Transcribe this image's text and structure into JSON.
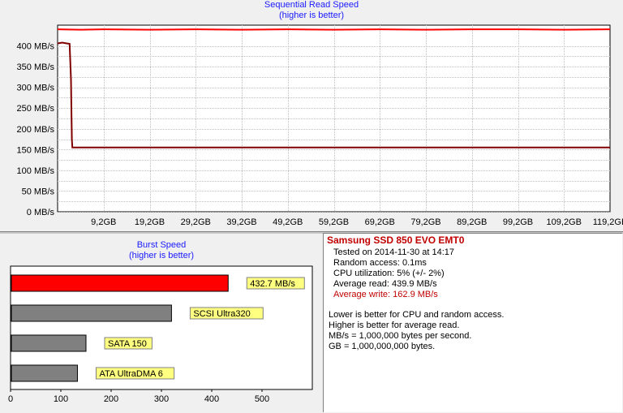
{
  "seq_chart": {
    "title": "Sequential Read Speed",
    "subtitle": "(higher is better)",
    "chart_data": {
      "type": "line",
      "title": "Sequential Read Speed",
      "subtitle": "(higher is better)",
      "y_ticks": [
        "0 MB/s",
        "25 MB/s",
        "50 MB/s",
        "75 MB/s",
        "100 MB/s",
        "125 MB/s",
        "150 MB/s",
        "175 MB/s",
        "200 MB/s",
        "225 MB/s",
        "250 MB/s",
        "275 MB/s",
        "300 MB/s",
        "325 MB/s",
        "350 MB/s",
        "375 MB/s",
        "400 MB/s"
      ],
      "y_tick_labels_shown": [
        "0 MB/s",
        "50 MB/s",
        "100 MB/s",
        "150 MB/s",
        "200 MB/s",
        "250 MB/s",
        "300 MB/s",
        "350 MB/s",
        "400 MB/s"
      ],
      "x_ticks": [
        "9,2GB",
        "19,2GB",
        "29,2GB",
        "39,2GB",
        "49,2GB",
        "59,2GB",
        "69,2GB",
        "79,2GB",
        "89,2GB",
        "99,2GB",
        "109,2GB",
        "119,2GB"
      ],
      "ylim": [
        0,
        450
      ],
      "xlim": [
        0,
        120
      ],
      "grid": true,
      "series": [
        {
          "color": "#ff0000",
          "x": [
            0,
            5,
            10,
            20,
            30,
            40,
            50,
            60,
            70,
            80,
            90,
            100,
            110,
            120
          ],
          "values": [
            440,
            439,
            440,
            439,
            440,
            439,
            440,
            439,
            440,
            439,
            440,
            440,
            439,
            440
          ]
        },
        {
          "color": "#800000",
          "x": [
            0,
            1,
            2,
            2.6,
            2.9,
            3.0,
            3.1,
            3.2,
            5,
            20,
            40,
            60,
            80,
            100,
            120
          ],
          "values": [
            406,
            408,
            406,
            405,
            320,
            250,
            175,
            155,
            155,
            155,
            155,
            155,
            155,
            155,
            155
          ]
        }
      ]
    }
  },
  "burst_chart": {
    "title": "Burst Speed",
    "subtitle": "(higher is better)",
    "chart_data": {
      "type": "bar",
      "orientation": "horizontal",
      "title": "Burst Speed",
      "subtitle": "(higher is better)",
      "categories": [
        "432.7 MB/s",
        "SCSI Ultra320",
        "SATA 150",
        "ATA UltraDMA 6"
      ],
      "values": [
        432.7,
        320,
        150,
        133
      ],
      "colors": [
        "#ff0000",
        "#808080",
        "#808080",
        "#808080"
      ],
      "x_ticks": [
        "0",
        "100",
        "200",
        "300",
        "400",
        "500"
      ],
      "xlim": [
        0,
        600
      ]
    }
  },
  "info": {
    "device": "Samsung SSD 850 EVO EMT0",
    "tested": "Tested on 2014-11-30 at 14:17",
    "random_access": "Random access: 0.1ms",
    "cpu": "CPU utilization: 5% (+/- 2%)",
    "avg_read": "Average read: 439.9 MB/s",
    "avg_write": "Average write: 162.9 MB/s",
    "note1": "Lower is better for CPU and random access.",
    "note2": "Higher is better for average read.",
    "note3": "MB/s = 1,000,000 bytes per second.",
    "note4": "GB = 1,000,000,000 bytes."
  }
}
